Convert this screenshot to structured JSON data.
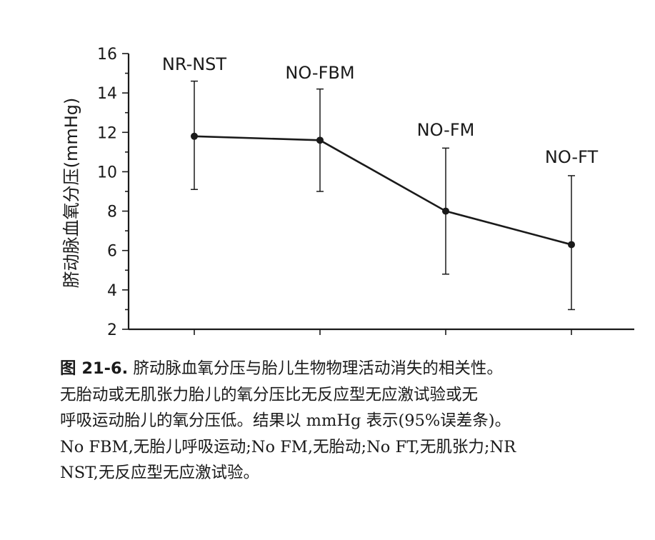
{
  "chart_data": {
    "type": "line",
    "title": "",
    "xlabel": "",
    "ylabel": "脐动脉血氧分压(mmHg)",
    "ylim": [
      2,
      16
    ],
    "yticks": [
      2,
      4,
      6,
      8,
      10,
      12,
      14,
      16
    ],
    "grid": false,
    "categories": [
      "NR-NST",
      "NO-FBM",
      "NO-FM",
      "NO-FT"
    ],
    "series": [
      {
        "values": [
          11.8,
          11.6,
          8.0,
          6.3
        ],
        "error_low": [
          9.1,
          9.0,
          4.8,
          3.0
        ],
        "error_high": [
          14.6,
          14.2,
          11.2,
          9.8
        ]
      }
    ],
    "point_color": "#1a1a1a"
  },
  "caption": {
    "figure_number": "图 21-6.",
    "line1": "脐动脉血氧分压与胎儿生物物理活动消失的相关性。",
    "line2": "无胎动或无肌张力胎儿的氧分压比无反应型无应激试验或无",
    "line3": "呼吸运动胎儿的氧分压低。结果以 mmHg 表示(95%误差条)。",
    "line4": "No FBM,无胎儿呼吸运动;No FM,无胎动;No FT,无肌张力;NR",
    "line5": "NST,无反应型无应激试验。"
  }
}
